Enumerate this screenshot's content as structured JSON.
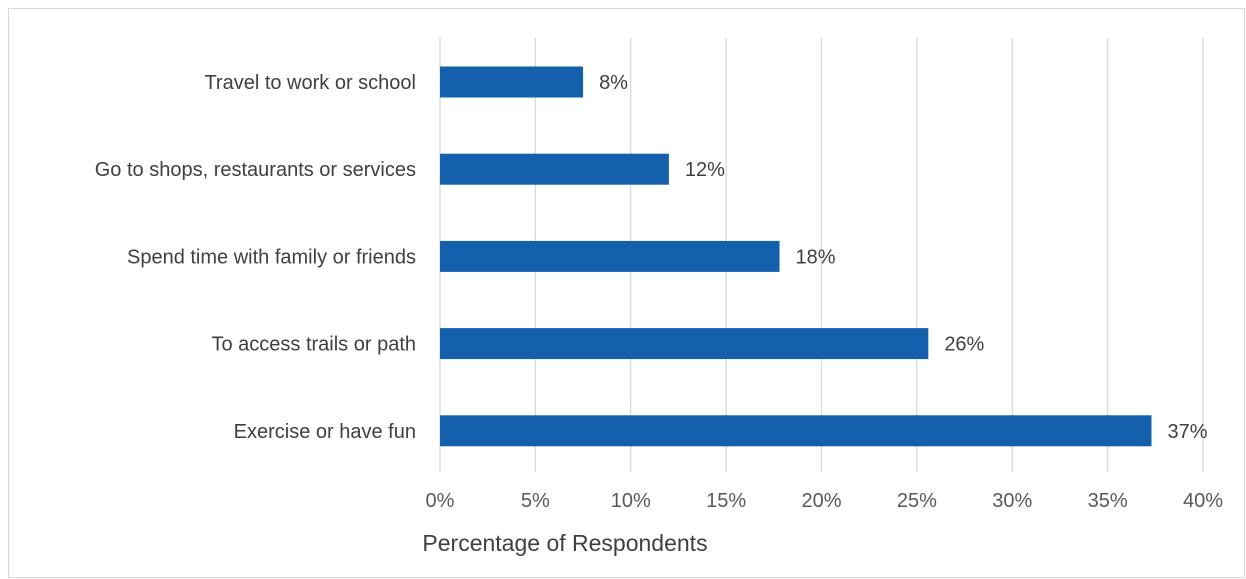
{
  "chart_data": {
    "type": "bar",
    "orientation": "horizontal",
    "categories": [
      "Travel to work or school",
      "Go to shops, restaurants or services",
      "Spend time with family or friends",
      "To access trails or path",
      "Exercise or have fun"
    ],
    "values": [
      7.5,
      12,
      17.8,
      25.6,
      37.3
    ],
    "data_labels": [
      "8%",
      "12%",
      "18%",
      "26%",
      "37%"
    ],
    "xlabel": "Percentage of Respondents",
    "ylabel": "",
    "xlim": [
      0,
      40
    ],
    "x_ticks": [
      0,
      5,
      10,
      15,
      20,
      25,
      30,
      35,
      40
    ],
    "x_tick_labels": [
      "0%",
      "5%",
      "10%",
      "15%",
      "20%",
      "25%",
      "30%",
      "35%",
      "40%"
    ],
    "grid": "vertical",
    "legend": "none",
    "bar_color": "#1560ac",
    "gridline_color": "#d9d9d9"
  }
}
